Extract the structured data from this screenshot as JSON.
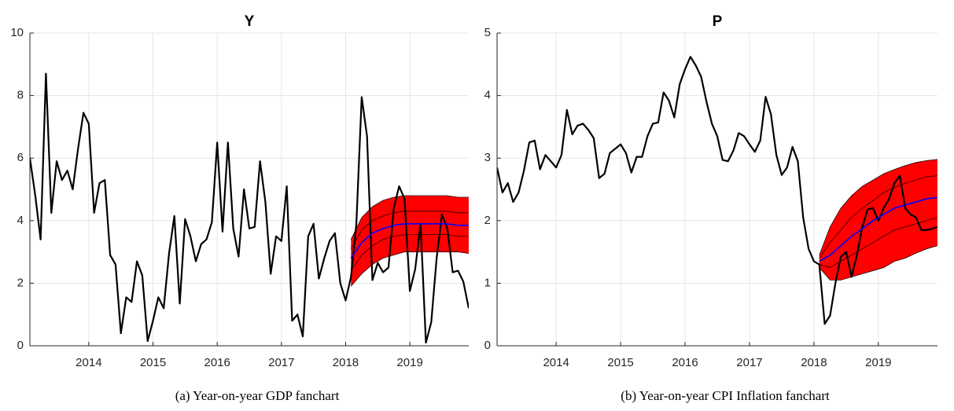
{
  "chart_data": [
    {
      "type": "fan",
      "title": "Y",
      "caption": "(a) Year-on-year GDP fanchart",
      "x": [
        2013.083,
        2013.167,
        2013.25,
        2013.333,
        2013.417,
        2013.5,
        2013.583,
        2013.667,
        2013.75,
        2013.833,
        2013.917,
        2014,
        2014.083,
        2014.167,
        2014.25,
        2014.333,
        2014.417,
        2014.5,
        2014.583,
        2014.667,
        2014.75,
        2014.833,
        2014.917,
        2015,
        2015.083,
        2015.167,
        2015.25,
        2015.333,
        2015.417,
        2015.5,
        2015.583,
        2015.667,
        2015.75,
        2015.833,
        2015.917,
        2016,
        2016.083,
        2016.167,
        2016.25,
        2016.333,
        2016.417,
        2016.5,
        2016.583,
        2016.667,
        2016.75,
        2016.833,
        2016.917,
        2017,
        2017.083,
        2017.167,
        2017.25,
        2017.333,
        2017.417,
        2017.5,
        2017.583,
        2017.667,
        2017.75,
        2017.833,
        2017.917,
        2018,
        2018.083,
        2018.167,
        2018.25,
        2018.333,
        2018.417,
        2018.5,
        2018.583,
        2018.667,
        2018.75,
        2018.833,
        2018.917,
        2019,
        2019.083,
        2019.167,
        2019.25,
        2019.333,
        2019.417,
        2019.5,
        2019.583,
        2019.667,
        2019.75,
        2019.833,
        2019.917
      ],
      "series": [
        {
          "color": "#000000",
          "values": [
            6.0,
            4.8,
            3.4,
            8.7,
            4.25,
            5.9,
            5.3,
            5.6,
            5.0,
            6.3,
            7.45,
            7.1,
            4.25,
            5.2,
            5.3,
            2.9,
            2.6,
            0.4,
            1.55,
            1.4,
            2.7,
            2.25,
            0.15,
            0.8,
            1.55,
            1.2,
            2.95,
            4.15,
            1.35,
            4.05,
            3.5,
            2.7,
            3.25,
            3.4,
            3.95,
            6.5,
            3.65,
            6.5,
            3.75,
            2.85,
            5.0,
            3.75,
            3.8,
            5.9,
            4.6,
            2.3,
            3.5,
            3.35,
            5.1,
            0.8,
            1.0,
            0.3,
            3.5,
            3.9,
            2.15,
            2.8,
            3.35,
            3.6,
            2.0,
            1.45,
            2.2,
            3.9,
            7.95,
            6.7,
            2.1,
            2.65,
            2.35,
            2.5,
            4.4,
            5.1,
            4.7,
            1.75,
            2.45,
            3.9,
            0.1,
            0.75,
            2.8,
            4.2,
            3.75,
            2.35,
            2.4,
            2.05,
            1.2
          ]
        }
      ],
      "fan": {
        "x": [
          2018.083,
          2018.25,
          2018.417,
          2018.583,
          2018.75,
          2018.917,
          2019.083,
          2019.25,
          2019.417,
          2019.583,
          2019.75,
          2019.917
        ],
        "fill": "#ff0000",
        "edge_color": "#000000",
        "median_color": "#0000ff",
        "quantiles": [
          [
            1.9,
            2.3,
            2.6,
            2.8,
            2.9,
            3.0,
            3.0,
            3.0,
            3.0,
            3.0,
            3.0,
            2.95
          ],
          [
            2.4,
            2.9,
            3.2,
            3.4,
            3.5,
            3.55,
            3.55,
            3.55,
            3.55,
            3.55,
            3.5,
            3.5
          ],
          [
            3.1,
            3.7,
            4.0,
            4.15,
            4.25,
            4.3,
            4.3,
            4.3,
            4.3,
            4.3,
            4.25,
            4.25
          ],
          [
            3.4,
            4.1,
            4.45,
            4.65,
            4.75,
            4.8,
            4.8,
            4.8,
            4.8,
            4.8,
            4.75,
            4.75
          ]
        ],
        "median": [
          2.8,
          3.3,
          3.6,
          3.75,
          3.85,
          3.9,
          3.9,
          3.9,
          3.9,
          3.9,
          3.85,
          3.85
        ]
      },
      "xlim": [
        2013.083,
        2019.917
      ],
      "xticks": [
        2014,
        2015,
        2016,
        2017,
        2018,
        2019
      ],
      "ylim": [
        0,
        10
      ],
      "yticks": [
        0,
        2,
        4,
        6,
        8,
        10
      ],
      "grid": true
    },
    {
      "type": "fan",
      "title": "P",
      "caption": "(b) Year-on-year CPI Inflation fanchart",
      "x": [
        2013.083,
        2013.167,
        2013.25,
        2013.333,
        2013.417,
        2013.5,
        2013.583,
        2013.667,
        2013.75,
        2013.833,
        2013.917,
        2014,
        2014.083,
        2014.167,
        2014.25,
        2014.333,
        2014.417,
        2014.5,
        2014.583,
        2014.667,
        2014.75,
        2014.833,
        2014.917,
        2015,
        2015.083,
        2015.167,
        2015.25,
        2015.333,
        2015.417,
        2015.5,
        2015.583,
        2015.667,
        2015.75,
        2015.833,
        2015.917,
        2016,
        2016.083,
        2016.167,
        2016.25,
        2016.333,
        2016.417,
        2016.5,
        2016.583,
        2016.667,
        2016.75,
        2016.833,
        2016.917,
        2017,
        2017.083,
        2017.167,
        2017.25,
        2017.333,
        2017.417,
        2017.5,
        2017.583,
        2017.667,
        2017.75,
        2017.833,
        2017.917,
        2018,
        2018.083,
        2018.167,
        2018.25,
        2018.333,
        2018.417,
        2018.5,
        2018.583,
        2018.667,
        2018.75,
        2018.833,
        2018.917,
        2019,
        2019.083,
        2019.167,
        2019.25,
        2019.333,
        2019.417,
        2019.5,
        2019.583,
        2019.667,
        2019.75,
        2019.833,
        2019.917
      ],
      "series": [
        {
          "color": "#000000",
          "values": [
            2.85,
            2.45,
            2.6,
            2.3,
            2.45,
            2.8,
            3.25,
            3.28,
            2.82,
            3.05,
            2.95,
            2.85,
            3.05,
            3.77,
            3.38,
            3.52,
            3.55,
            3.45,
            3.32,
            2.68,
            2.75,
            3.08,
            3.15,
            3.22,
            3.08,
            2.77,
            3.02,
            3.02,
            3.35,
            3.55,
            3.57,
            4.05,
            3.92,
            3.65,
            4.18,
            4.42,
            4.62,
            4.48,
            4.3,
            3.9,
            3.55,
            3.35,
            2.97,
            2.95,
            3.12,
            3.4,
            3.35,
            3.22,
            3.1,
            3.28,
            3.98,
            3.7,
            3.05,
            2.73,
            2.85,
            3.18,
            2.95,
            2.05,
            1.55,
            1.35,
            1.3,
            0.35,
            0.48,
            1.0,
            1.42,
            1.5,
            1.1,
            1.45,
            1.9,
            2.18,
            2.2,
            2.0,
            2.2,
            2.35,
            2.6,
            2.72,
            2.2,
            2.1,
            2.05,
            1.85,
            1.85,
            1.87,
            1.9
          ]
        }
      ],
      "fan": {
        "x": [
          2018.083,
          2018.25,
          2018.417,
          2018.583,
          2018.75,
          2018.917,
          2019.083,
          2019.25,
          2019.417,
          2019.583,
          2019.75,
          2019.917
        ],
        "fill": "#ff0000",
        "edge_color": "#000000",
        "median_color": "#0000ff",
        "quantiles": [
          [
            1.25,
            1.05,
            1.05,
            1.1,
            1.15,
            1.2,
            1.25,
            1.35,
            1.4,
            1.48,
            1.55,
            1.6
          ],
          [
            1.3,
            1.25,
            1.35,
            1.45,
            1.55,
            1.65,
            1.75,
            1.85,
            1.9,
            1.95,
            2.0,
            2.05
          ],
          [
            1.4,
            1.65,
            1.85,
            2.05,
            2.2,
            2.32,
            2.45,
            2.53,
            2.6,
            2.65,
            2.7,
            2.72
          ],
          [
            1.45,
            1.9,
            2.2,
            2.4,
            2.55,
            2.65,
            2.75,
            2.82,
            2.88,
            2.93,
            2.96,
            2.98
          ]
        ],
        "median": [
          1.35,
          1.45,
          1.6,
          1.75,
          1.87,
          2.0,
          2.1,
          2.2,
          2.25,
          2.3,
          2.35,
          2.37
        ]
      },
      "xlim": [
        2013.083,
        2019.917
      ],
      "xticks": [
        2014,
        2015,
        2016,
        2017,
        2018,
        2019
      ],
      "ylim": [
        0,
        5
      ],
      "yticks": [
        0,
        1,
        2,
        3,
        4,
        5
      ],
      "grid": true
    }
  ]
}
